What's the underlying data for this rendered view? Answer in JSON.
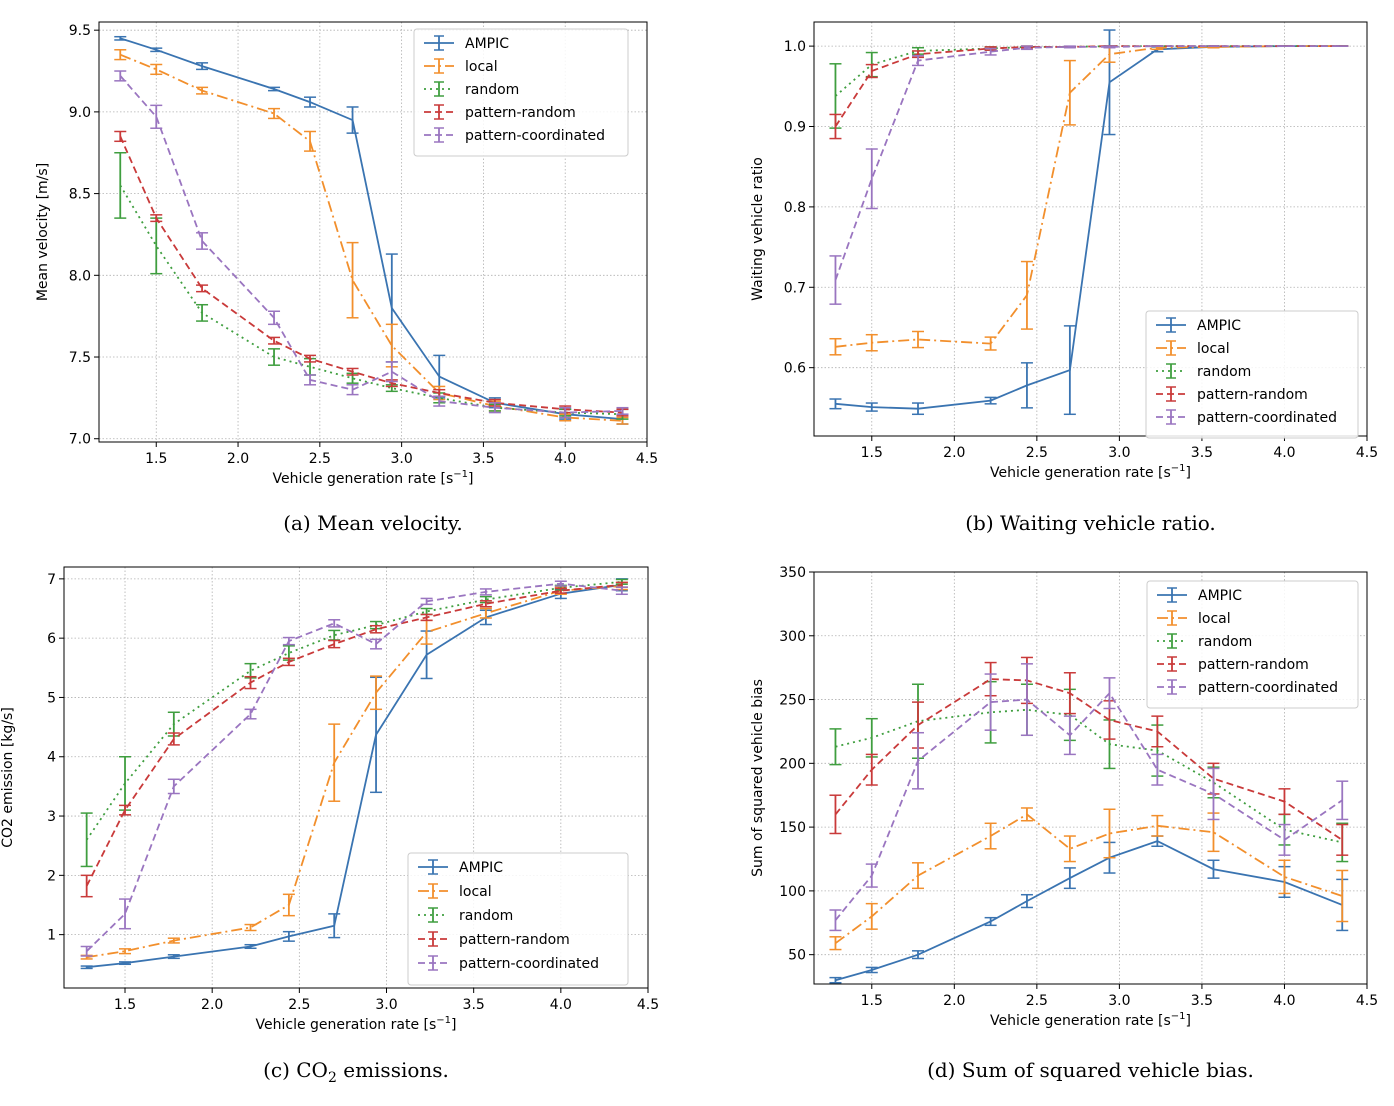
{
  "chart_data": [
    {
      "type": "line",
      "caption": "(a) Mean velocity.",
      "xlabel": "Vehicle generation rate [s",
      "xlabel_unit": "−1",
      "xlabel_close": "]",
      "ylabel": "Mean velocity [m/s]",
      "xlim": [
        1.15,
        4.5
      ],
      "ylim": [
        6.98,
        9.55
      ],
      "xticks": [
        1.5,
        2.0,
        2.5,
        3.0,
        3.5,
        4.0,
        4.5
      ],
      "xtick_labels": [
        "1.5",
        "2.0",
        "2.5",
        "3.0",
        "3.5",
        "4.0",
        "4.5"
      ],
      "yticks": [
        7.0,
        7.5,
        8.0,
        8.5,
        9.0,
        9.5
      ],
      "ytick_labels": [
        "7.0",
        "7.5",
        "8.0",
        "8.5",
        "9.0",
        "9.5"
      ],
      "legend": "top-right",
      "grid": true,
      "x": [
        1.28,
        1.5,
        1.78,
        2.22,
        2.44,
        2.7,
        2.94,
        3.23,
        3.57,
        4.0,
        4.35
      ],
      "series": [
        {
          "name": "AMPIC",
          "values": [
            9.45,
            9.38,
            9.28,
            9.14,
            9.06,
            8.95,
            7.8,
            7.38,
            7.22,
            7.15,
            7.12
          ],
          "err": [
            0.01,
            0.01,
            0.02,
            0.01,
            0.03,
            0.08,
            0.33,
            0.13,
            0.03,
            0.03,
            0.03
          ]
        },
        {
          "name": "local",
          "values": [
            9.35,
            9.26,
            9.13,
            8.99,
            8.82,
            7.97,
            7.57,
            7.28,
            7.2,
            7.13,
            7.11
          ],
          "err": [
            0.03,
            0.03,
            0.02,
            0.03,
            0.06,
            0.23,
            0.13,
            0.04,
            0.03,
            0.02,
            0.02
          ]
        },
        {
          "name": "random",
          "values": [
            8.55,
            8.18,
            7.77,
            7.5,
            7.44,
            7.37,
            7.31,
            7.25,
            7.19,
            7.16,
            7.15
          ],
          "err": [
            0.2,
            0.17,
            0.05,
            0.05,
            0.05,
            0.03,
            0.02,
            0.03,
            0.02,
            0.02,
            0.03
          ]
        },
        {
          "name": "pattern-random",
          "values": [
            8.85,
            8.35,
            7.92,
            7.6,
            7.49,
            7.41,
            7.34,
            7.28,
            7.22,
            7.18,
            7.16
          ],
          "err": [
            0.03,
            0.02,
            0.02,
            0.02,
            0.02,
            0.02,
            0.02,
            0.02,
            0.02,
            0.02,
            0.02
          ]
        },
        {
          "name": "pattern-coordinated",
          "values": [
            9.22,
            8.97,
            8.21,
            7.74,
            7.36,
            7.3,
            7.41,
            7.23,
            7.19,
            7.16,
            7.17
          ],
          "err": [
            0.03,
            0.07,
            0.05,
            0.04,
            0.03,
            0.03,
            0.06,
            0.03,
            0.03,
            0.03,
            0.02
          ]
        }
      ]
    },
    {
      "type": "line",
      "caption": "(b) Waiting vehicle ratio.",
      "xlabel": "Vehicle generation rate [s",
      "xlabel_unit": "−1",
      "xlabel_close": "]",
      "ylabel": "Waiting vehicle ratio",
      "xlim": [
        1.15,
        4.5
      ],
      "ylim": [
        0.515,
        1.03
      ],
      "xticks": [
        1.5,
        2.0,
        2.5,
        3.0,
        3.5,
        4.0,
        4.5
      ],
      "xtick_labels": [
        "1.5",
        "2.0",
        "2.5",
        "3.0",
        "3.5",
        "4.0",
        "4.5"
      ],
      "yticks": [
        0.6,
        0.7,
        0.8,
        0.9,
        1.0
      ],
      "ytick_labels": [
        "0.6",
        "0.7",
        "0.8",
        "0.9",
        "1.0"
      ],
      "legend": "bottom-right",
      "grid": true,
      "x": [
        1.28,
        1.5,
        1.78,
        2.22,
        2.44,
        2.7,
        2.94,
        3.23,
        3.57,
        4.0,
        4.35
      ],
      "series": [
        {
          "name": "AMPIC",
          "values": [
            0.555,
            0.551,
            0.549,
            0.559,
            0.578,
            0.597,
            0.955,
            0.996,
            0.999,
            1.0,
            1.0
          ],
          "err": [
            0.006,
            0.005,
            0.007,
            0.004,
            0.028,
            0.055,
            0.065,
            0.003,
            0.001,
            0.0,
            0.0
          ]
        },
        {
          "name": "local",
          "values": [
            0.626,
            0.631,
            0.635,
            0.63,
            0.69,
            0.942,
            0.99,
            0.998,
            0.999,
            1.0,
            1.0
          ],
          "err": [
            0.01,
            0.01,
            0.01,
            0.008,
            0.042,
            0.04,
            0.01,
            0.002,
            0.001,
            0.0,
            0.0
          ]
        },
        {
          "name": "random",
          "values": [
            0.938,
            0.977,
            0.994,
            0.997,
            0.999,
            0.999,
            1.0,
            1.0,
            1.0,
            1.0,
            1.0
          ],
          "err": [
            0.04,
            0.015,
            0.004,
            0.002,
            0.001,
            0.0,
            0.0,
            0.0,
            0.0,
            0.0,
            0.0
          ]
        },
        {
          "name": "pattern-random",
          "values": [
            0.9,
            0.969,
            0.99,
            0.997,
            0.999,
            0.999,
            1.0,
            1.0,
            1.0,
            1.0,
            1.0
          ],
          "err": [
            0.015,
            0.008,
            0.004,
            0.002,
            0.001,
            0.0,
            0.0,
            0.0,
            0.0,
            0.0,
            0.0
          ]
        },
        {
          "name": "pattern-coordinated",
          "values": [
            0.709,
            0.835,
            0.982,
            0.993,
            0.998,
            0.999,
            0.999,
            1.0,
            1.0,
            1.0,
            1.0
          ],
          "err": [
            0.03,
            0.037,
            0.006,
            0.004,
            0.002,
            0.001,
            0.001,
            0.0,
            0.0,
            0.0,
            0.0
          ]
        }
      ]
    },
    {
      "type": "line",
      "caption": "(c) CO",
      "caption_sub": "2",
      "caption_tail": " emissions.",
      "xlabel": "Vehicle generation rate [s",
      "xlabel_unit": "−1",
      "xlabel_close": "]",
      "ylabel": "CO2 emission [kg/s]",
      "xlim": [
        1.15,
        4.5
      ],
      "ylim": [
        0.1,
        7.2
      ],
      "xticks": [
        1.5,
        2.0,
        2.5,
        3.0,
        3.5,
        4.0,
        4.5
      ],
      "xtick_labels": [
        "1.5",
        "2.0",
        "2.5",
        "3.0",
        "3.5",
        "4.0",
        "4.5"
      ],
      "yticks": [
        1,
        2,
        3,
        4,
        5,
        6,
        7
      ],
      "ytick_labels": [
        "1",
        "2",
        "3",
        "4",
        "5",
        "6",
        "7"
      ],
      "legend": "bottom-right",
      "grid": true,
      "x": [
        1.28,
        1.5,
        1.78,
        2.22,
        2.44,
        2.7,
        2.94,
        3.23,
        3.57,
        4.0,
        4.35
      ],
      "series": [
        {
          "name": "AMPIC",
          "values": [
            0.45,
            0.52,
            0.63,
            0.8,
            0.97,
            1.15,
            4.37,
            5.72,
            6.35,
            6.75,
            6.9
          ],
          "err": [
            0.02,
            0.02,
            0.03,
            0.03,
            0.08,
            0.2,
            0.97,
            0.4,
            0.12,
            0.08,
            0.1
          ]
        },
        {
          "name": "local",
          "values": [
            0.62,
            0.72,
            0.9,
            1.12,
            1.5,
            3.9,
            5.08,
            6.1,
            6.42,
            6.8,
            6.88
          ],
          "err": [
            0.03,
            0.04,
            0.04,
            0.05,
            0.18,
            0.65,
            0.28,
            0.2,
            0.08,
            0.06,
            0.06
          ]
        },
        {
          "name": "random",
          "values": [
            2.6,
            3.55,
            4.55,
            5.45,
            5.75,
            6.05,
            6.22,
            6.45,
            6.65,
            6.85,
            6.95
          ],
          "err": [
            0.45,
            0.45,
            0.2,
            0.12,
            0.12,
            0.08,
            0.06,
            0.05,
            0.05,
            0.04,
            0.04
          ]
        },
        {
          "name": "pattern-random",
          "values": [
            1.82,
            3.1,
            4.3,
            5.25,
            5.6,
            5.9,
            6.15,
            6.35,
            6.58,
            6.8,
            6.9
          ],
          "err": [
            0.18,
            0.08,
            0.1,
            0.1,
            0.06,
            0.06,
            0.06,
            0.05,
            0.05,
            0.04,
            0.04
          ]
        },
        {
          "name": "pattern-coordinated",
          "values": [
            0.72,
            1.35,
            3.5,
            4.72,
            5.95,
            6.25,
            5.9,
            6.62,
            6.78,
            6.92,
            6.8
          ],
          "err": [
            0.08,
            0.25,
            0.12,
            0.08,
            0.06,
            0.06,
            0.08,
            0.05,
            0.05,
            0.04,
            0.06
          ]
        }
      ]
    },
    {
      "type": "line",
      "caption": "(d) Sum of squared vehicle bias.",
      "xlabel": "Vehicle generation rate [s",
      "xlabel_unit": "−1",
      "xlabel_close": "]",
      "ylabel": "Sum of squared vehicle bias",
      "xlim": [
        1.15,
        4.5
      ],
      "ylim": [
        27,
        350
      ],
      "xticks": [
        1.5,
        2.0,
        2.5,
        3.0,
        3.5,
        4.0,
        4.5
      ],
      "xtick_labels": [
        "1.5",
        "2.0",
        "2.5",
        "3.0",
        "3.5",
        "4.0",
        "4.5"
      ],
      "yticks": [
        50,
        100,
        150,
        200,
        250,
        300,
        350
      ],
      "ytick_labels": [
        "50",
        "100",
        "150",
        "200",
        "250",
        "300",
        "350"
      ],
      "legend": "top-right",
      "grid": true,
      "x": [
        1.28,
        1.5,
        1.78,
        2.22,
        2.44,
        2.7,
        2.94,
        3.23,
        3.57,
        4.0,
        4.35
      ],
      "series": [
        {
          "name": "AMPIC",
          "values": [
            30,
            38,
            50,
            76,
            92,
            110,
            126,
            139,
            117,
            107,
            89
          ],
          "err": [
            2,
            2,
            3,
            3,
            5,
            8,
            12,
            4,
            7,
            12,
            20
          ]
        },
        {
          "name": "local",
          "values": [
            59,
            80,
            112,
            143,
            160,
            133,
            145,
            151,
            146,
            111,
            96
          ],
          "err": [
            5,
            10,
            10,
            10,
            5,
            10,
            19,
            8,
            15,
            13,
            20
          ]
        },
        {
          "name": "random",
          "values": [
            213,
            220,
            233,
            240,
            242,
            238,
            215,
            210,
            185,
            148,
            138
          ],
          "err": [
            14,
            15,
            29,
            24,
            20,
            20,
            19,
            20,
            12,
            12,
            15
          ]
        },
        {
          "name": "pattern-random",
          "values": [
            160,
            195,
            230,
            266,
            265,
            255,
            234,
            225,
            188,
            170,
            140
          ],
          "err": [
            15,
            12,
            18,
            13,
            18,
            16,
            15,
            12,
            12,
            10,
            12
          ]
        },
        {
          "name": "pattern-coordinated",
          "values": [
            77,
            112,
            202,
            248,
            250,
            222,
            255,
            195,
            176,
            140,
            171
          ],
          "err": [
            8,
            9,
            22,
            22,
            28,
            15,
            12,
            12,
            20,
            12,
            15
          ]
        }
      ]
    }
  ],
  "series_styles": [
    {
      "color": "#3a74b1",
      "dash": ""
    },
    {
      "color": "#f28f2c",
      "dash": "11 4 2 4"
    },
    {
      "color": "#3f9e3f",
      "dash": "2 4"
    },
    {
      "color": "#c93a3a",
      "dash": "7 4"
    },
    {
      "color": "#9a75c0",
      "dash": "7 4"
    }
  ]
}
